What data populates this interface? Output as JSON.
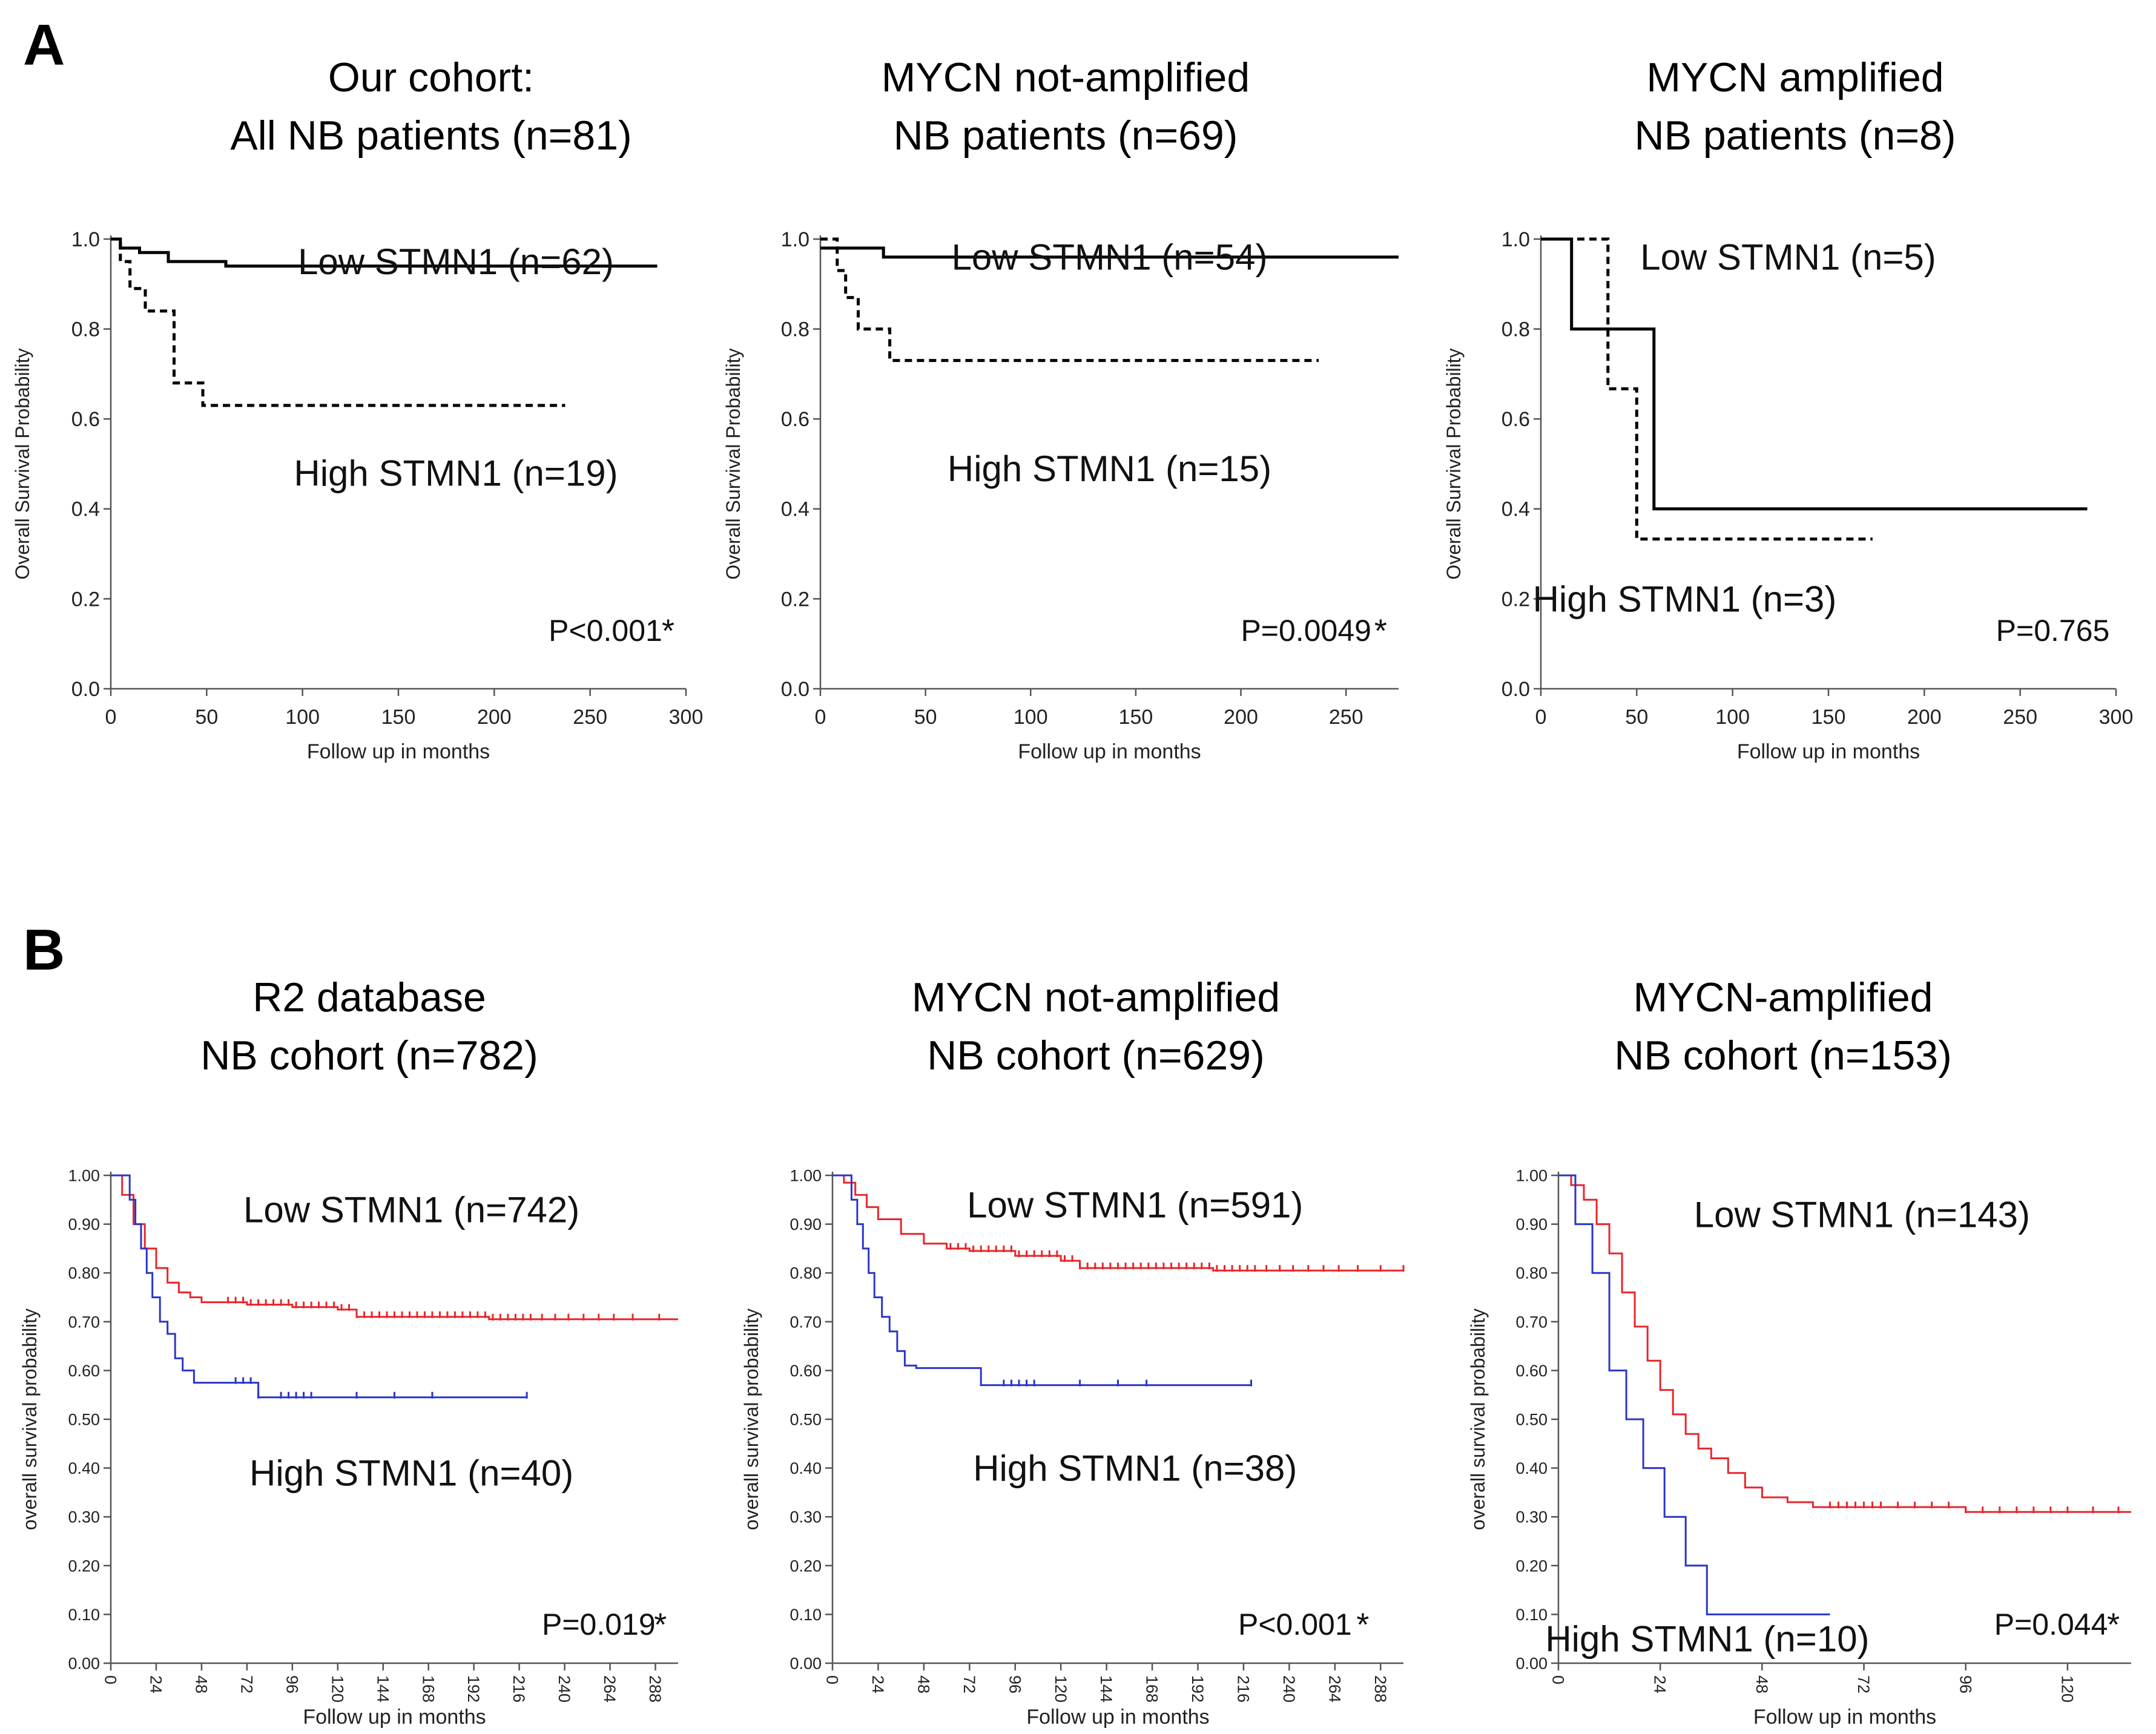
{
  "figure": {
    "panel_a_label": "A",
    "panel_b_label": "B"
  },
  "chart_data": [
    {
      "type": "line",
      "panel": "A",
      "title": [
        "Our cohort:",
        "All NB patients (n=81)"
      ],
      "xlabel": "Follow up in months",
      "ylabel": "Overall Survival Probability",
      "xlim": [
        0,
        300
      ],
      "ylim": [
        0,
        1
      ],
      "xticks": [
        0,
        50,
        100,
        150,
        200,
        250,
        300
      ],
      "yticks": [
        0.0,
        0.2,
        0.4,
        0.6,
        0.8,
        1.0
      ],
      "ytick_labels": [
        "0.0",
        "0.2",
        "0.4",
        "0.6",
        "0.8",
        "1.0"
      ],
      "series": [
        {
          "name": "Low STMN1 (n=62)",
          "color": "#000000",
          "dash": "solid",
          "x": [
            0,
            5,
            5,
            15,
            15,
            30,
            30,
            60,
            60,
            285
          ],
          "y": [
            1.0,
            1.0,
            0.98,
            0.98,
            0.97,
            0.97,
            0.95,
            0.95,
            0.94,
            0.94
          ]
        },
        {
          "name": "High STMN1 (n=19)",
          "color": "#000000",
          "dash": "dashed",
          "x": [
            0,
            5,
            5,
            10,
            10,
            18,
            18,
            33,
            33,
            38,
            38,
            48,
            48,
            237
          ],
          "y": [
            1.0,
            1.0,
            0.95,
            0.95,
            0.89,
            0.89,
            0.84,
            0.84,
            0.68,
            0.68,
            0.68,
            0.68,
            0.63,
            0.63
          ]
        }
      ],
      "annotations": [
        "Low STMN1 (n=62)",
        "High STMN1 (n=19)",
        "P<0.001",
        "*"
      ]
    },
    {
      "type": "line",
      "panel": "A",
      "title": [
        "MYCN not-amplified",
        "NB patients (n=69)"
      ],
      "xlabel": "Follow up in months",
      "ylabel": "Overall Survival Probability",
      "xlim": [
        0,
        275
      ],
      "ylim": [
        0,
        1
      ],
      "xticks": [
        0,
        50,
        100,
        150,
        200,
        250
      ],
      "yticks": [
        0.0,
        0.2,
        0.4,
        0.6,
        0.8,
        1.0
      ],
      "ytick_labels": [
        "0.0",
        "0.2",
        "0.4",
        "0.6",
        "0.8",
        "1.0"
      ],
      "series": [
        {
          "name": "Low STMN1 (n=54)",
          "color": "#000000",
          "dash": "solid",
          "x": [
            0,
            30,
            30,
            275
          ],
          "y": [
            0.98,
            0.98,
            0.96,
            0.96
          ]
        },
        {
          "name": "High STMN1 (n=15)",
          "color": "#000000",
          "dash": "dashed",
          "x": [
            0,
            8,
            8,
            12,
            12,
            18,
            18,
            33,
            33,
            237
          ],
          "y": [
            1.0,
            1.0,
            0.93,
            0.93,
            0.87,
            0.87,
            0.8,
            0.8,
            0.73,
            0.73
          ]
        }
      ],
      "annotations": [
        "Low STMN1 (n=54)",
        "High STMN1 (n=15)",
        "P=0.0049",
        "*"
      ]
    },
    {
      "type": "line",
      "panel": "A",
      "title": [
        "MYCN amplified",
        "NB patients (n=8)"
      ],
      "xlabel": "Follow up in months",
      "ylabel": "Overall Survival Probability",
      "xlim": [
        0,
        300
      ],
      "ylim": [
        0,
        1
      ],
      "xticks": [
        0,
        50,
        100,
        150,
        200,
        250,
        300
      ],
      "yticks": [
        0.0,
        0.2,
        0.4,
        0.6,
        0.8,
        1.0
      ],
      "ytick_labels": [
        "0.0",
        "0.2",
        "0.4",
        "0.6",
        "0.8",
        "1.0"
      ],
      "series": [
        {
          "name": "Low STMN1 (n=5)",
          "color": "#000000",
          "dash": "solid",
          "x": [
            0,
            16,
            16,
            59,
            59,
            285
          ],
          "y": [
            1.0,
            1.0,
            0.8,
            0.8,
            0.4,
            0.4
          ]
        },
        {
          "name": "High STMN1 (n=3)",
          "color": "#000000",
          "dash": "dashed",
          "x": [
            0,
            35,
            35,
            50,
            50,
            173
          ],
          "y": [
            1.0,
            1.0,
            0.667,
            0.667,
            0.333,
            0.333
          ]
        }
      ],
      "annotations": [
        "Low STMN1 (n=5)",
        "High STMN1 (n=3)",
        "P=0.765"
      ]
    },
    {
      "type": "line",
      "panel": "B",
      "title": [
        "R2 database",
        "NB cohort (n=782)"
      ],
      "xlabel": "Follow up in months",
      "ylabel": "overall survival probability",
      "xlim": [
        0,
        300
      ],
      "ylim": [
        0,
        1
      ],
      "xticks": [
        0,
        24,
        48,
        72,
        96,
        120,
        144,
        168,
        192,
        216,
        240,
        264,
        288
      ],
      "yticks": [
        0.0,
        0.1,
        0.2,
        0.3,
        0.4,
        0.5,
        0.6,
        0.7,
        0.8,
        0.9,
        1.0
      ],
      "ytick_labels": [
        "0.00",
        "0.10",
        "0.20",
        "0.30",
        "0.40",
        "0.50",
        "0.60",
        "0.70",
        "0.80",
        "0.90",
        "1.00"
      ],
      "series": [
        {
          "name": "Low STMN1 (n=742)",
          "color": "#e8262a",
          "dash": "solid",
          "x": [
            0,
            6,
            12,
            18,
            24,
            30,
            36,
            42,
            48,
            60,
            72,
            96,
            120,
            130,
            144,
            200,
            250,
            300
          ],
          "y": [
            1.0,
            0.96,
            0.9,
            0.85,
            0.81,
            0.78,
            0.76,
            0.75,
            0.74,
            0.74,
            0.735,
            0.73,
            0.725,
            0.71,
            0.71,
            0.705,
            0.705,
            0.705
          ],
          "censor_x": [
            62,
            66,
            70,
            74,
            78,
            82,
            86,
            90,
            94,
            98,
            102,
            106,
            110,
            114,
            118,
            122,
            126,
            130,
            134,
            138,
            142,
            146,
            150,
            154,
            158,
            162,
            166,
            170,
            174,
            178,
            182,
            186,
            190,
            194,
            198,
            202,
            206,
            210,
            214,
            218,
            222,
            228,
            235,
            242,
            250,
            258,
            266,
            276,
            290
          ]
        },
        {
          "name": "High STMN1 (n=40)",
          "color": "#2b35c8",
          "dash": "solid",
          "x": [
            0,
            10,
            13,
            16,
            19,
            22,
            26,
            30,
            34,
            38,
            44,
            78,
            220
          ],
          "y": [
            1.0,
            0.95,
            0.9,
            0.85,
            0.8,
            0.75,
            0.7,
            0.675,
            0.625,
            0.6,
            0.575,
            0.545,
            0.545
          ],
          "censor_x": [
            66,
            70,
            74,
            78,
            90,
            94,
            98,
            102,
            106,
            130,
            150,
            170,
            220
          ]
        }
      ],
      "annotations": [
        "Low STMN1 (n=742)",
        "High STMN1 (n=40)",
        "P=0.019",
        "*"
      ]
    },
    {
      "type": "line",
      "panel": "B",
      "title": [
        "MYCN not-amplified",
        "NB cohort (n=629)"
      ],
      "xlabel": "Follow up in months",
      "ylabel": "overall survival probability",
      "xlim": [
        0,
        300
      ],
      "ylim": [
        0,
        1
      ],
      "xticks": [
        0,
        24,
        48,
        72,
        96,
        120,
        144,
        168,
        192,
        216,
        240,
        264,
        288
      ],
      "yticks": [
        0.0,
        0.1,
        0.2,
        0.3,
        0.4,
        0.5,
        0.6,
        0.7,
        0.8,
        0.9,
        1.0
      ],
      "ytick_labels": [
        "0.00",
        "0.10",
        "0.20",
        "0.30",
        "0.40",
        "0.50",
        "0.60",
        "0.70",
        "0.80",
        "0.90",
        "1.00"
      ],
      "series": [
        {
          "name": "Low STMN1 (n=591)",
          "color": "#e8262a",
          "dash": "solid",
          "x": [
            0,
            6,
            12,
            18,
            24,
            36,
            48,
            60,
            72,
            96,
            120,
            130,
            144,
            200,
            250,
            300
          ],
          "y": [
            1.0,
            0.985,
            0.96,
            0.935,
            0.91,
            0.88,
            0.86,
            0.85,
            0.845,
            0.835,
            0.825,
            0.81,
            0.81,
            0.805,
            0.805,
            0.805
          ],
          "censor_x": [
            62,
            66,
            70,
            74,
            78,
            82,
            86,
            90,
            94,
            98,
            102,
            106,
            110,
            114,
            118,
            122,
            126,
            130,
            134,
            138,
            142,
            146,
            150,
            154,
            158,
            162,
            166,
            170,
            174,
            178,
            182,
            186,
            190,
            194,
            198,
            202,
            206,
            210,
            214,
            218,
            222,
            228,
            235,
            242,
            250,
            258,
            266,
            276,
            288,
            300
          ]
        },
        {
          "name": "High STMN1 (n=38)",
          "color": "#2b35c8",
          "dash": "solid",
          "x": [
            0,
            10,
            13,
            16,
            19,
            22,
            26,
            30,
            34,
            38,
            44,
            78,
            220
          ],
          "y": [
            1.0,
            0.95,
            0.9,
            0.85,
            0.8,
            0.75,
            0.71,
            0.68,
            0.64,
            0.61,
            0.605,
            0.57,
            0.57
          ],
          "censor_x": [
            90,
            94,
            98,
            102,
            106,
            130,
            150,
            165,
            220
          ]
        }
      ],
      "annotations": [
        "Low STMN1 (n=591)",
        "High STMN1 (n=38)",
        "P<0.001",
        "*"
      ]
    },
    {
      "type": "line",
      "panel": "B",
      "title": [
        "MYCN-amplified",
        "NB cohort (n=153)"
      ],
      "xlabel": "Follow up in months",
      "ylabel": "overall survival probability",
      "xlim": [
        0,
        135
      ],
      "ylim": [
        0,
        1
      ],
      "xticks": [
        0,
        24,
        48,
        72,
        96,
        120
      ],
      "yticks": [
        0.0,
        0.1,
        0.2,
        0.3,
        0.4,
        0.5,
        0.6,
        0.7,
        0.8,
        0.9,
        1.0
      ],
      "ytick_labels": [
        "0.00",
        "0.10",
        "0.20",
        "0.30",
        "0.40",
        "0.50",
        "0.60",
        "0.70",
        "0.80",
        "0.90",
        "1.00"
      ],
      "series": [
        {
          "name": "Low STMN1 (n=143)",
          "color": "#e8262a",
          "dash": "solid",
          "x": [
            0,
            3,
            6,
            9,
            12,
            15,
            18,
            21,
            24,
            27,
            30,
            33,
            36,
            40,
            44,
            48,
            54,
            60,
            72,
            96,
            120,
            135
          ],
          "y": [
            1.0,
            0.98,
            0.95,
            0.9,
            0.84,
            0.76,
            0.69,
            0.62,
            0.56,
            0.51,
            0.47,
            0.44,
            0.42,
            0.39,
            0.36,
            0.34,
            0.33,
            0.32,
            0.32,
            0.31,
            0.31,
            0.31
          ],
          "censor_x": [
            64,
            66,
            68,
            70,
            72,
            74,
            76,
            80,
            84,
            88,
            92,
            96,
            100,
            104,
            108,
            112,
            116,
            120,
            126,
            132
          ]
        },
        {
          "name": "High STMN1 (n=10)",
          "color": "#2b35c8",
          "dash": "solid",
          "x": [
            0,
            4,
            4,
            8,
            8,
            12,
            12,
            16,
            16,
            20,
            20,
            25,
            25,
            30,
            30,
            35,
            35,
            64
          ],
          "y": [
            1.0,
            1.0,
            0.9,
            0.9,
            0.8,
            0.8,
            0.6,
            0.6,
            0.5,
            0.5,
            0.4,
            0.4,
            0.3,
            0.3,
            0.2,
            0.2,
            0.1,
            0.1
          ],
          "censor_x": []
        }
      ],
      "annotations": [
        "Low STMN1 (n=143)",
        "High STMN1 (n=10)",
        "P=0.044",
        "*"
      ]
    }
  ]
}
